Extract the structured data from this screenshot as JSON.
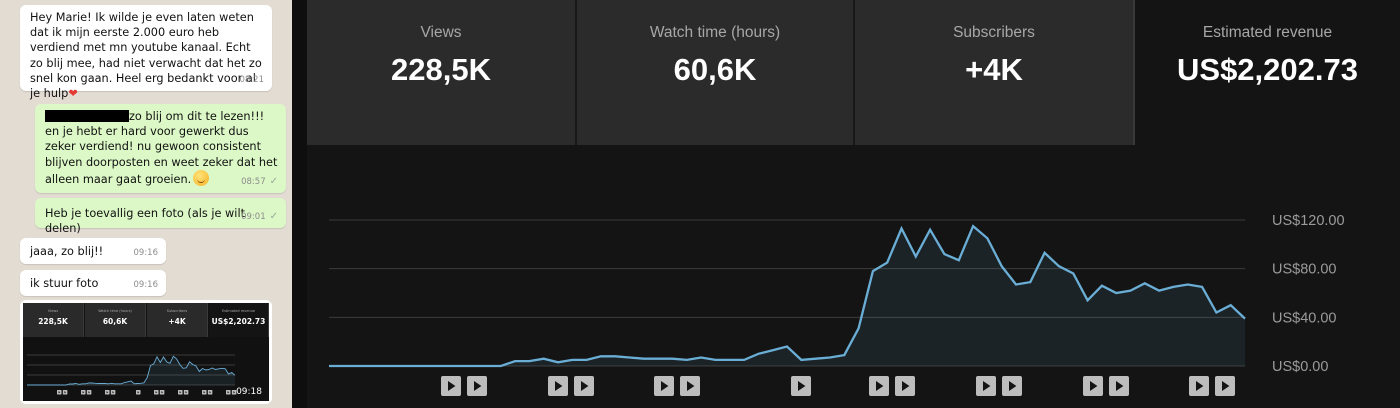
{
  "chat": {
    "messages": [
      {
        "dir": "in",
        "text": "Hey Marie! Ik wilde je even laten weten dat ik mijn eerste 2.000 euro heb verdiend met mn youtube kanaal. Echt zo blij mee, had niet verwacht dat het zo snel kon gaan. Heel erg bedankt voor al je hulp",
        "emoji": "❤",
        "time": "08:21"
      },
      {
        "dir": "out",
        "text": "zo blij om dit te lezen!!! en je hebt er hard voor gewerkt dus zeker verdiend! nu gewoon consistent blijven doorposten en weet zeker dat het alleen maar gaat groeien.",
        "time": "08:57",
        "redacted_prefix": true
      },
      {
        "dir": "out",
        "text": "Heb je toevallig een foto (als je wilt delen)",
        "time": "09:01"
      },
      {
        "dir": "in",
        "text": "jaaa, zo blij!!",
        "time": "09:16"
      },
      {
        "dir": "in",
        "text": "ik stuur foto",
        "time": "09:16"
      }
    ],
    "image_time": "09:18",
    "tick_icon": "double-check-icon"
  },
  "stats": [
    {
      "label": "Views",
      "value": "228,5K"
    },
    {
      "label": "Watch time (hours)",
      "value": "60,6K"
    },
    {
      "label": "Subscribers",
      "value": "+4K"
    },
    {
      "label": "Estimated revenue",
      "value": "US$2,202.73"
    }
  ],
  "colors": {
    "line": "#6aaed6",
    "card": "#2b2b2b",
    "card_selected": "#141414",
    "chat_bg": "#e3dcd3",
    "bubble_out": "#dcf8c6"
  },
  "chart_data": {
    "type": "area",
    "ylabel_ticks": [
      "US$0.00",
      "US$40.00",
      "US$80.00",
      "US$120.00"
    ],
    "y_ticks_values": [
      0,
      40,
      80,
      120
    ],
    "ylim": [
      0,
      120
    ],
    "grid": true,
    "values": [
      0,
      0,
      0,
      0,
      0,
      0,
      0,
      0,
      0,
      0,
      0,
      0,
      0,
      4,
      4,
      6,
      3,
      5,
      5,
      8,
      8,
      7,
      6,
      6,
      6,
      5,
      7,
      5,
      5,
      5,
      10,
      13,
      16,
      5,
      6,
      7,
      9,
      31,
      78,
      85,
      113,
      90,
      112,
      92,
      87,
      115,
      105,
      82,
      67,
      69,
      93,
      82,
      76,
      54,
      66,
      60,
      62,
      68,
      62,
      65,
      67,
      65,
      44,
      50,
      39
    ],
    "video_markers": [
      {
        "group": 1,
        "icons": [
          "play-icon",
          "play-icon"
        ]
      },
      {
        "group": 2,
        "icons": [
          "play-icon",
          "play-icon"
        ]
      },
      {
        "group": 3,
        "icons": [
          "play-icon",
          "play-icon"
        ]
      },
      {
        "group": 4,
        "icons": [
          "play-icon"
        ]
      },
      {
        "group": 5,
        "icons": [
          "play-icon",
          "play-icon"
        ]
      },
      {
        "group": 6,
        "icons": [
          "play-icon",
          "play-icon"
        ]
      },
      {
        "group": 7,
        "icons": [
          "play-icon",
          "play-icon"
        ]
      },
      {
        "group": 8,
        "icons": [
          "play-icon",
          "play-icon"
        ]
      }
    ]
  }
}
